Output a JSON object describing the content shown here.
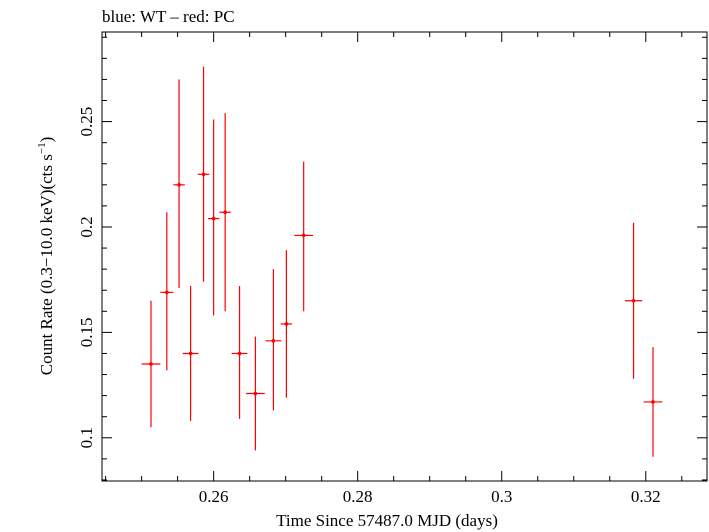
{
  "chart_data": {
    "type": "scatter",
    "title": "blue: WT – red: PC",
    "xlabel": "Time Since 57487.0 MJD (days)",
    "ylabel_main": "Count Rate (0.3−10.0 keV)(cts s",
    "ylabel_sup": "−1",
    "ylabel_close": ")",
    "xlim": [
      0.2445,
      0.3285
    ],
    "ylim": [
      0.0795,
      0.2925
    ],
    "xticks": [
      0.26,
      0.28,
      0.3,
      0.32
    ],
    "xtick_labels": [
      "0.26",
      "0.28",
      "0.3",
      "0.32"
    ],
    "yticks": [
      0.1,
      0.15,
      0.2,
      0.25
    ],
    "ytick_labels": [
      "0.1",
      "0.15",
      "0.2",
      "0.25"
    ],
    "grid": false,
    "colors": {
      "PC": "#ff0000",
      "WT": "#0000ff",
      "axes": "#000000"
    },
    "series": [
      {
        "name": "PC",
        "points": [
          {
            "x": 0.2513,
            "xerr": 0.0013,
            "y": 0.135,
            "ylo": 0.105,
            "yhi": 0.165
          },
          {
            "x": 0.2535,
            "xerr": 0.0009,
            "y": 0.169,
            "ylo": 0.132,
            "yhi": 0.207
          },
          {
            "x": 0.2552,
            "xerr": 0.0008,
            "y": 0.22,
            "ylo": 0.171,
            "yhi": 0.27
          },
          {
            "x": 0.2568,
            "xerr": 0.0011,
            "y": 0.14,
            "ylo": 0.108,
            "yhi": 0.172
          },
          {
            "x": 0.2586,
            "xerr": 0.0008,
            "y": 0.225,
            "ylo": 0.174,
            "yhi": 0.276
          },
          {
            "x": 0.26,
            "xerr": 0.0008,
            "y": 0.204,
            "ylo": 0.158,
            "yhi": 0.251
          },
          {
            "x": 0.2616,
            "xerr": 0.0008,
            "y": 0.207,
            "ylo": 0.16,
            "yhi": 0.254
          },
          {
            "x": 0.2636,
            "xerr": 0.0011,
            "y": 0.14,
            "ylo": 0.109,
            "yhi": 0.172
          },
          {
            "x": 0.2658,
            "xerr": 0.0013,
            "y": 0.121,
            "ylo": 0.094,
            "yhi": 0.148
          },
          {
            "x": 0.2683,
            "xerr": 0.0011,
            "y": 0.146,
            "ylo": 0.113,
            "yhi": 0.18
          },
          {
            "x": 0.2701,
            "xerr": 0.0008,
            "y": 0.154,
            "ylo": 0.119,
            "yhi": 0.189
          },
          {
            "x": 0.2725,
            "xerr": 0.0013,
            "y": 0.196,
            "ylo": 0.16,
            "yhi": 0.231
          },
          {
            "x": 0.3183,
            "xerr": 0.0012,
            "y": 0.165,
            "ylo": 0.128,
            "yhi": 0.202
          },
          {
            "x": 0.321,
            "xerr": 0.0013,
            "y": 0.117,
            "ylo": 0.091,
            "yhi": 0.143
          }
        ]
      }
    ]
  }
}
